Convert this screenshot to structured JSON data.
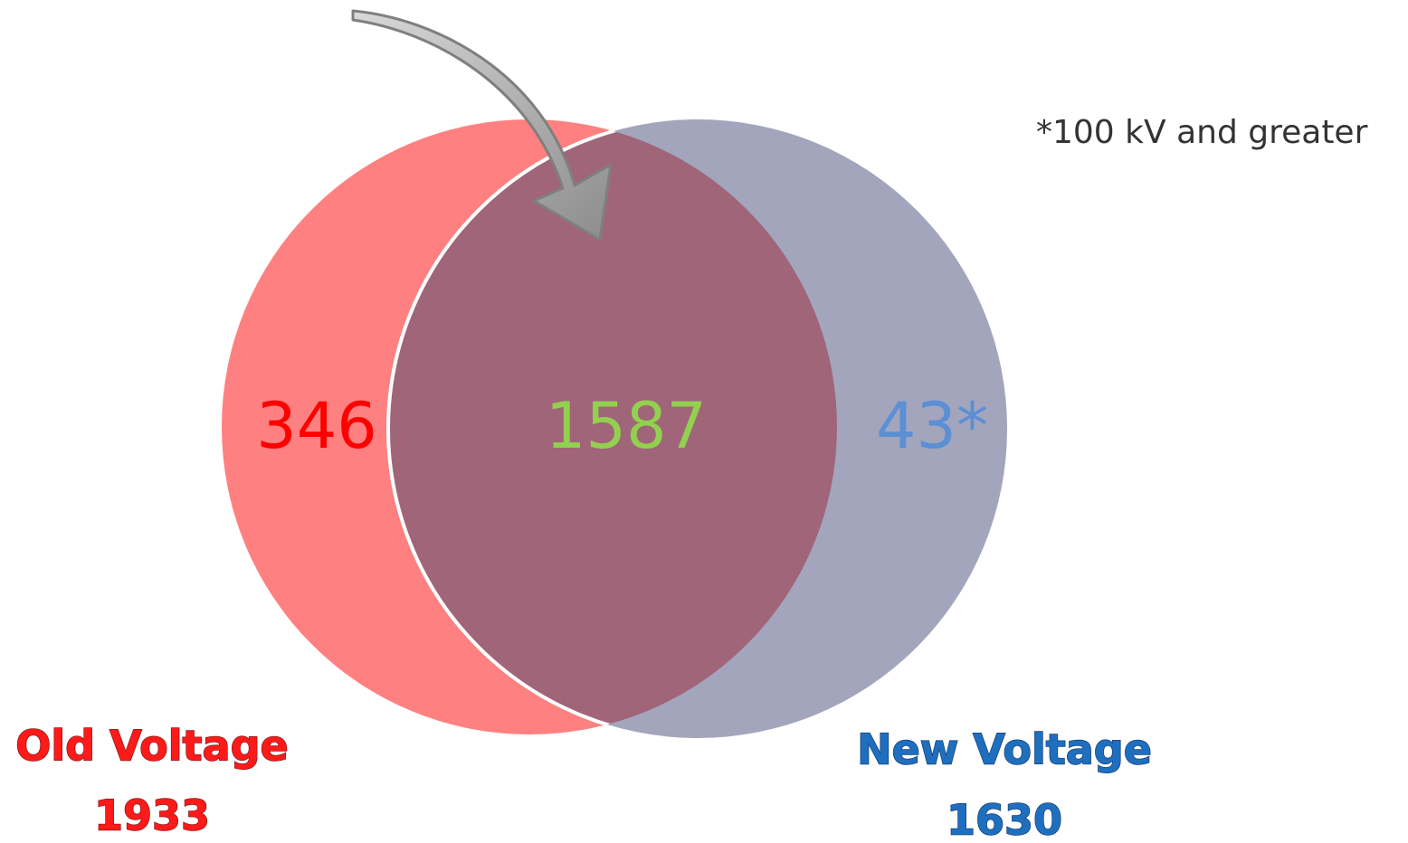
{
  "footnote": "*100 kV and greater",
  "sets": [
    {
      "label": "Old Voltage",
      "total": 1933
    },
    {
      "label": "New Voltage",
      "total": 1630
    }
  ],
  "regions": {
    "old_only": 346,
    "both": 1587,
    "new_only": "43*"
  }
}
